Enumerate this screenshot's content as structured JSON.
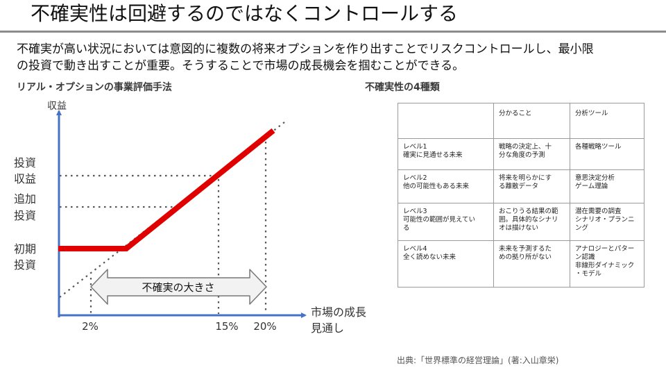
{
  "title": "不確実性は回避するのではなくコントロールする",
  "intro": {
    "line1": "不確実が高い状況においては意図的に複数の将来オプションを作り出すことでリスクコントロールし、最小限",
    "line2": "の投資で動き出すことが重要。そうすることで市場の成長機会を掴むことができる。"
  },
  "left_section_title": "リアル・オプションの事業評価手法",
  "right_section_title": "不確実性の4種類",
  "diagram": {
    "y_axis_label": "収益",
    "x_axis_label_line1": "市場の成長",
    "x_axis_label_line2": "見通し",
    "y_markers": [
      {
        "line1": "投資",
        "line2": "収益"
      },
      {
        "line1": "追加",
        "line2": "投資"
      },
      {
        "line1": "初期",
        "line2": "投資"
      }
    ],
    "x_markers": [
      "2%",
      "15%",
      "20%"
    ],
    "arrow_label": "不確実の大きさ",
    "colors": {
      "axis": "#4472c4",
      "payoff": "#e00000",
      "guide": "#555555"
    }
  },
  "table": {
    "headers": [
      "",
      "分かること",
      "分析ツール"
    ],
    "rows": [
      {
        "level": [
          "レベル1",
          "確実に見通せる未来"
        ],
        "known": [
          "戦略の決定上、十",
          "分な角度の予測"
        ],
        "tools": [
          "各種戦略ツール"
        ]
      },
      {
        "level": [
          "レベル2",
          "他の可能性もある未来"
        ],
        "known": [
          "将来を明らかにす",
          "る離散データ"
        ],
        "tools": [
          "意思決定分析",
          "ゲーム理論"
        ]
      },
      {
        "level": [
          "レベル3",
          "可能性の範囲が見えてい",
          "る"
        ],
        "known": [
          "おこりうる結果の範",
          "囲。具体的なシナリ",
          "オは描けない"
        ],
        "tools": [
          "潜在需要の調査",
          "シナリオ・プランニ",
          "ング"
        ]
      },
      {
        "level": [
          "レベル4",
          "全く読めない未来"
        ],
        "known": [
          "未来を予測するた",
          "めの拠り所がない"
        ],
        "tools": [
          "アナロジーとパター",
          "ン認識",
          "非線形ダイナミック",
          "・モデル"
        ]
      }
    ]
  },
  "source": "出典:「世界標準の経営理論」(著:入山章栄)"
}
